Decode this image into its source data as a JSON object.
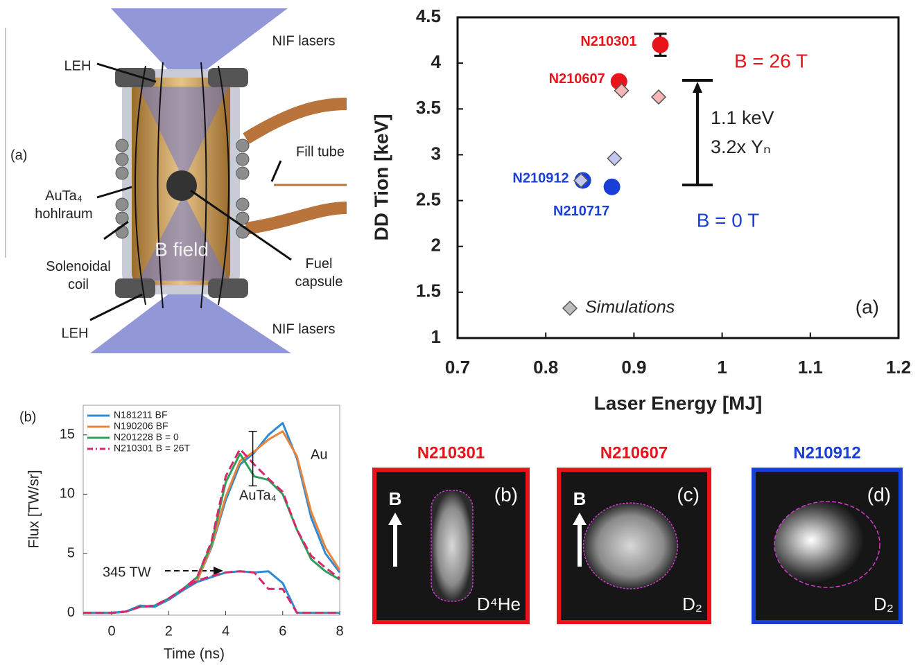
{
  "chart_data": [
    {
      "type": "scatter",
      "xlabel": "Laser Energy [MJ]",
      "ylabel": "DD Tion [keV]",
      "xlim": [
        0.7,
        1.2
      ],
      "xticks": [
        0.7,
        0.8,
        0.9,
        1,
        1.1,
        1.2
      ],
      "ylim": [
        1,
        4.5
      ],
      "yticks": [
        1,
        1.5,
        2,
        2.5,
        3,
        3.5,
        4,
        4.5
      ],
      "series": [
        {
          "name": "N210301",
          "color": "#e8141b",
          "x": [
            0.93
          ],
          "values": [
            4.2
          ],
          "errors": [
            0.12
          ]
        },
        {
          "name": "N210607",
          "color": "#e8141b",
          "x": [
            0.883
          ],
          "values": [
            3.8
          ]
        },
        {
          "name": "N210912",
          "color": "#1a3fd8",
          "x": [
            0.842
          ],
          "values": [
            2.72
          ]
        },
        {
          "name": "N210717",
          "color": "#1a3fd8",
          "x": [
            0.875
          ],
          "values": [
            2.65
          ]
        },
        {
          "name": "Simulations",
          "color": "#bdbdbd",
          "colors": [
            "#f6b6b6",
            "#f6b6b6",
            "#c3c7f0",
            "#c3c7f0"
          ],
          "x": [
            0.886,
            0.928,
            0.878,
            0.84
          ],
          "values": [
            3.7,
            3.63,
            2.96,
            2.72
          ]
        }
      ],
      "legend": "lower left",
      "annotations": {
        "high": "B = 26 T",
        "low": "B = 0 T",
        "delta": "1.1 keV",
        "yield": "3.2x Yₙ",
        "panel": "(a)"
      }
    },
    {
      "type": "line",
      "xlabel": "Time (ns)",
      "ylabel": "Flux [TW/sr]",
      "xlim": [
        -1,
        8
      ],
      "xticks": [
        0,
        2,
        4,
        6,
        8
      ],
      "ylim": [
        -0.2,
        17.5
      ],
      "yticks": [
        0,
        5,
        10,
        15
      ],
      "x": [
        -1,
        -0.5,
        0,
        0.5,
        1,
        1.5,
        2,
        2.5,
        3,
        3.5,
        4,
        4.5,
        5,
        5.5,
        6,
        6.5,
        7,
        7.5,
        8
      ],
      "series": [
        {
          "name": "N181211 BF",
          "color": "#2f8ad4",
          "values": [
            0,
            0,
            0,
            0.1,
            0.6,
            0.5,
            1.1,
            1.9,
            2.7,
            5.5,
            9.5,
            12.5,
            13.5,
            15,
            16,
            13,
            8,
            5,
            3.4
          ]
        },
        {
          "name": "N190206 BF",
          "color": "#e8843c",
          "values": [
            0,
            0,
            0,
            0.1,
            0.5,
            0.5,
            1.1,
            1.9,
            2.7,
            5.6,
            9.8,
            12.8,
            13.6,
            14.6,
            15.3,
            13.2,
            8.5,
            5.5,
            3.6
          ]
        },
        {
          "name": "N201228 B = 0",
          "color": "#2ca05a",
          "values": [
            0,
            0,
            0,
            0.1,
            0.5,
            0.6,
            1.2,
            2,
            3,
            5.8,
            11,
            13.4,
            11.5,
            11.2,
            10,
            7,
            4.5,
            3.5,
            2.8
          ]
        },
        {
          "name": "N210301 B = 26T",
          "color": "#d6286a",
          "dashed": true,
          "values": [
            0,
            0,
            0,
            0.1,
            0.5,
            0.6,
            1.2,
            2,
            3,
            6,
            11.5,
            13.8,
            12.5,
            11.3,
            10.2,
            7,
            4.8,
            3.8,
            2.9
          ]
        },
        {
          "color": "#2f8ad4",
          "values": [
            0,
            0,
            0,
            0.1,
            0.6,
            0.5,
            1.1,
            1.9,
            2.6,
            3,
            3.4,
            3.5,
            3.4,
            3.5,
            2.5,
            0,
            0,
            0,
            0
          ]
        },
        {
          "color": "#d6286a",
          "dashed": true,
          "values": [
            0,
            0,
            0,
            0.1,
            0.5,
            0.6,
            1.2,
            2,
            2.7,
            3.1,
            3.4,
            3.5,
            3.4,
            2,
            2,
            0,
            0,
            0,
            0
          ]
        }
      ],
      "legend": "upper left",
      "errorbar": {
        "x": 4.95,
        "value": 13,
        "error": 2.3
      },
      "annotations": {
        "au": "Au",
        "auta": "AuTa₄",
        "power": "345 TW",
        "panel": "(b)"
      }
    }
  ],
  "diagram": {
    "lasers_top": "NIF lasers",
    "leh_top": "LEH",
    "fill_tube": "Fill tube",
    "panel": "(a)",
    "hohlraum": "AuTa₄ hohlraum",
    "coil": "Solenoidal coil",
    "field": "B field",
    "capsule": "Fuel capsule",
    "leh_bottom": "LEH",
    "lasers_bottom": "NIF lasers"
  },
  "images": [
    {
      "title": "N210301",
      "panel": "(b)",
      "arrow": "B",
      "species": "D⁴He",
      "color": "#e8141b"
    },
    {
      "title": "N210607",
      "panel": "(c)",
      "arrow": "B",
      "species": "D₂",
      "color": "#e8141b"
    },
    {
      "title": "N210912",
      "panel": "(d)",
      "species": "D₂",
      "color": "#1a3fd8"
    }
  ]
}
